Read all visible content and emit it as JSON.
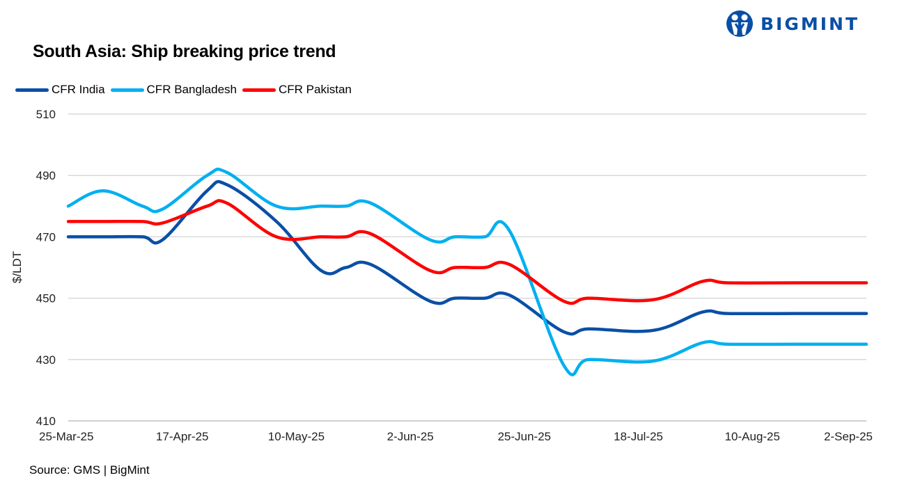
{
  "brand": "BIGMINT",
  "source": "Source: GMS | BigMint",
  "chart_data": {
    "type": "line",
    "title": "South Asia: Ship breaking  price trend",
    "xlabel": "",
    "ylabel": "$/LDT",
    "ylim": [
      410,
      510
    ],
    "yticks": [
      410,
      430,
      450,
      470,
      490,
      510
    ],
    "xticks": [
      "25-Mar-25",
      "17-Apr-25",
      "10-May-25",
      "2-Jun-25",
      "25-Jun-25",
      "18-Jul-25",
      "10-Aug-25",
      "2-Sep-25"
    ],
    "grid": true,
    "legend_position": "top-left",
    "x": [
      "2025-03-25",
      "2025-04-01",
      "2025-04-09",
      "2025-04-13",
      "2025-04-22",
      "2025-04-26",
      "2025-05-06",
      "2025-05-15",
      "2025-05-20",
      "2025-05-25",
      "2025-06-06",
      "2025-06-11",
      "2025-06-17",
      "2025-06-22",
      "2025-07-03",
      "2025-07-08",
      "2025-07-21",
      "2025-07-31",
      "2025-08-05",
      "2025-08-19",
      "2025-09-02"
    ],
    "series": [
      {
        "name": "CFR India",
        "color": "#0a4fa6",
        "values": [
          470,
          470,
          470,
          469,
          485,
          487,
          475,
          459,
          460,
          461,
          449,
          450,
          450,
          451,
          439,
          440,
          439.5,
          445.5,
          445,
          445,
          445
        ]
      },
      {
        "name": "CFR Bangladesh",
        "color": "#00b0f0",
        "values": [
          480,
          485,
          480,
          479,
          490,
          491,
          480,
          480,
          480,
          481,
          469,
          470,
          470,
          472,
          428,
          430,
          429.5,
          435.5,
          435,
          435,
          435
        ]
      },
      {
        "name": "CFR Pakistan",
        "color": "#ff0000",
        "values": [
          475,
          475,
          475,
          474.5,
          480,
          481,
          470,
          470,
          470,
          471,
          459,
          460,
          460,
          461,
          449,
          450,
          449.5,
          455.5,
          455,
          455,
          455
        ]
      }
    ]
  }
}
